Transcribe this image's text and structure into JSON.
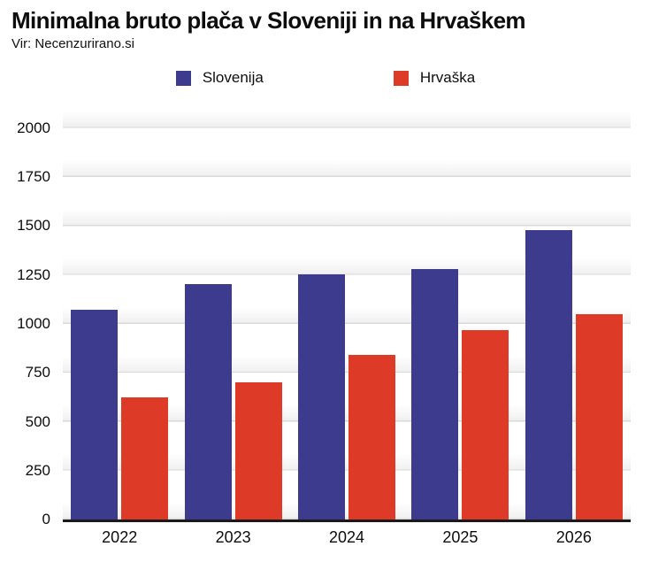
{
  "chart_data": {
    "type": "bar",
    "title": "Minimalna bruto plača v Sloveniji in na Hrvaškem",
    "source": "Vir: Necenzurirano.si",
    "categories": [
      "2022",
      "2023",
      "2024",
      "2025",
      "2026"
    ],
    "series": [
      {
        "name": "Slovenija",
        "color": "#3d3b8e",
        "values": [
          1074,
          1203,
          1254,
          1278,
          1480
        ]
      },
      {
        "name": "Hrvaška",
        "color": "#dd3a28",
        "values": [
          625,
          700,
          840,
          970,
          1050
        ]
      }
    ],
    "xlabel": "",
    "ylabel": "",
    "yticks": [
      0,
      250,
      500,
      750,
      1000,
      1250,
      1500,
      1750,
      2000
    ],
    "ylim": [
      0,
      2080
    ],
    "grid": true,
    "legend_position": "top"
  },
  "colors": {
    "gridline": "#d9d9d9",
    "band": "#f0f0f0",
    "axis": "#1a1a1a",
    "text": "#0d0d0d"
  }
}
